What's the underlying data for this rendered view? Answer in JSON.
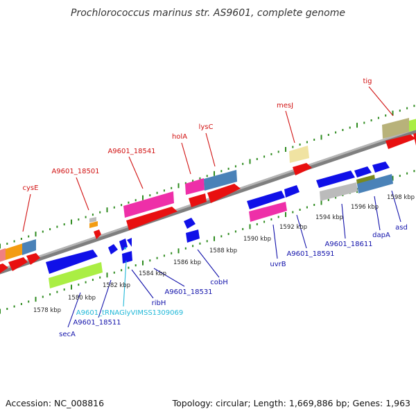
{
  "title": "Prochlorococcus marinus str. AS9601, complete genome",
  "footer": {
    "accession": "Accession: NC_008816",
    "topology": "Topology: circular; Length: 1,669,886 bp; Genes: 1,963"
  },
  "colors": {
    "backbone": "#8a8a8a",
    "tick": "#2e8b1f",
    "label_top": "#d11010",
    "label_bottom": "#1010aa",
    "label_trna": "#20b8d8"
  },
  "kbp_labels": [
    "1578 kbp",
    "1580 kbp",
    "1582 kbp",
    "1584 kbp",
    "1586 kbp",
    "1588 kbp",
    "1590 kbp",
    "1592 kbp",
    "1594 kbp",
    "1596 kbp",
    "1598 kbp"
  ],
  "labels_top": [
    "cysE",
    "A9601_18501",
    "A9601_18541",
    "holA",
    "lysC",
    "mesJ",
    "tig"
  ],
  "labels_bottom": [
    "secA",
    "A9601_18511",
    "A9601_tRNAGlyVIMSS1309069",
    "ribH",
    "A9601_18531",
    "cobH",
    "uvrB",
    "A9601_18591",
    "A9601_18611",
    "dapA",
    "asd"
  ]
}
